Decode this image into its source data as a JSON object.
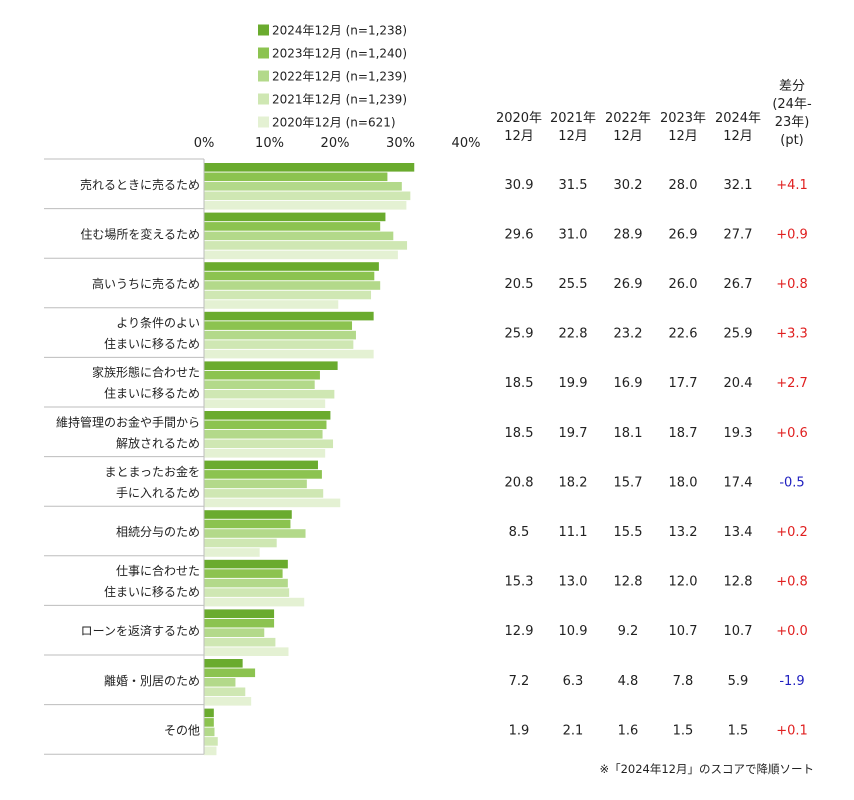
{
  "chart_data": {
    "type": "bar",
    "orientation": "horizontal",
    "xlim": [
      0,
      40
    ],
    "x_ticks": [
      "0%",
      "10%",
      "20%",
      "30%",
      "40%"
    ],
    "grid": false,
    "legend_position": "top",
    "categories": [
      [
        "売れるときに売るため"
      ],
      [
        "住む場所を変えるため"
      ],
      [
        "高いうちに売るため"
      ],
      [
        "より条件のよい",
        "住まいに移るため"
      ],
      [
        "家族形態に合わせた",
        "住まいに移るため"
      ],
      [
        "維持管理のお金や手間から",
        "解放されるため"
      ],
      [
        "まとまったお金を",
        "手に入れるため"
      ],
      [
        "相続分与のため"
      ],
      [
        "仕事に合わせた",
        "住まいに移るため"
      ],
      [
        "ローンを返済するため"
      ],
      [
        "離婚・別居のため"
      ],
      [
        "その他"
      ]
    ],
    "series": [
      {
        "name": "2024年12月 (n=1,238)",
        "color": "#6aab2e",
        "values": [
          32.1,
          27.7,
          26.7,
          25.9,
          20.4,
          19.3,
          17.4,
          13.4,
          12.8,
          10.7,
          5.9,
          1.5
        ]
      },
      {
        "name": "2023年12月 (n=1,240)",
        "color": "#8cc350",
        "values": [
          28.0,
          26.9,
          26.0,
          22.6,
          17.7,
          18.7,
          18.0,
          13.2,
          12.0,
          10.7,
          7.8,
          1.5
        ]
      },
      {
        "name": "2022年12月 (n=1,239)",
        "color": "#b3d98a",
        "values": [
          30.2,
          28.9,
          26.9,
          23.2,
          16.9,
          18.1,
          15.7,
          15.5,
          12.8,
          9.2,
          4.8,
          1.6
        ]
      },
      {
        "name": "2021年12月 (n=1,239)",
        "color": "#cfe7b3",
        "values": [
          31.5,
          31.0,
          25.5,
          22.8,
          19.9,
          19.7,
          18.2,
          11.1,
          13.0,
          10.9,
          6.3,
          2.1
        ]
      },
      {
        "name": "2020年12月 (n=621)",
        "color": "#e4f1d3",
        "values": [
          30.9,
          29.6,
          20.5,
          25.9,
          18.5,
          18.5,
          20.8,
          8.5,
          15.3,
          12.9,
          7.2,
          1.9
        ]
      }
    ],
    "table": {
      "headers": [
        [
          "2020年",
          "12月"
        ],
        [
          "2021年",
          "12月"
        ],
        [
          "2022年",
          "12月"
        ],
        [
          "2023年",
          "12月"
        ],
        [
          "2024年",
          "12月"
        ],
        [
          "差分",
          "(24年-",
          "23年)",
          "(pt)"
        ]
      ],
      "rows": [
        [
          "30.9",
          "31.5",
          "30.2",
          "28.0",
          "32.1",
          "+4.1"
        ],
        [
          "29.6",
          "31.0",
          "28.9",
          "26.9",
          "27.7",
          "+0.9"
        ],
        [
          "20.5",
          "25.5",
          "26.9",
          "26.0",
          "26.7",
          "+0.8"
        ],
        [
          "25.9",
          "22.8",
          "23.2",
          "22.6",
          "25.9",
          "+3.3"
        ],
        [
          "18.5",
          "19.9",
          "16.9",
          "17.7",
          "20.4",
          "+2.7"
        ],
        [
          "18.5",
          "19.7",
          "18.1",
          "18.7",
          "19.3",
          "+0.6"
        ],
        [
          "20.8",
          "18.2",
          "15.7",
          "18.0",
          "17.4",
          "-0.5"
        ],
        [
          "8.5",
          "11.1",
          "15.5",
          "13.2",
          "13.4",
          "+0.2"
        ],
        [
          "15.3",
          "13.0",
          "12.8",
          "12.0",
          "12.8",
          "+0.8"
        ],
        [
          "12.9",
          "10.9",
          "9.2",
          "10.7",
          "10.7",
          "+0.0"
        ],
        [
          "7.2",
          "6.3",
          "4.8",
          "7.8",
          "5.9",
          "-1.9"
        ],
        [
          "1.9",
          "2.1",
          "1.6",
          "1.5",
          "1.5",
          "+0.1"
        ]
      ],
      "positive_color": "#e02020",
      "negative_color": "#2020c0"
    },
    "note": "※「2024年12月」のスコアで降順ソート"
  }
}
